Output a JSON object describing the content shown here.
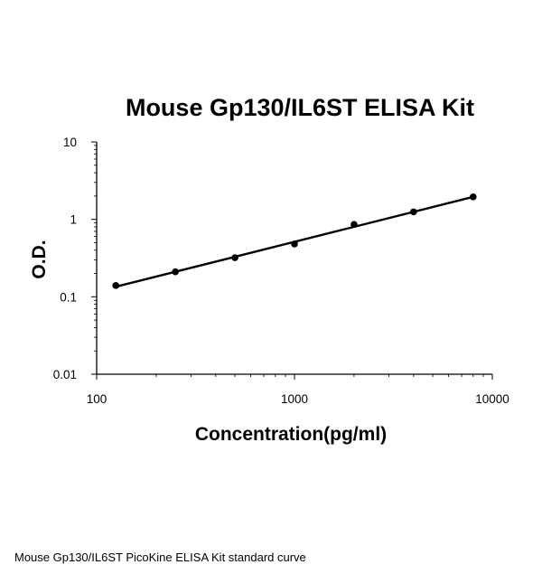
{
  "chart_data": {
    "type": "scatter",
    "title": "Mouse Gp130/IL6ST ELISA Kit",
    "xlabel": "Concentration(pg/ml)",
    "ylabel": "O.D.",
    "x_scale": "log",
    "y_scale": "log",
    "xlim": [
      100,
      10000
    ],
    "ylim": [
      0.01,
      10
    ],
    "x_ticks": [
      100,
      1000,
      10000
    ],
    "x_tick_labels": [
      "100",
      "1000",
      "10000"
    ],
    "y_ticks": [
      0.01,
      0.1,
      1,
      10
    ],
    "y_tick_labels": [
      "0.01",
      "0.1",
      "1",
      "10"
    ],
    "grid": false,
    "legend": "none",
    "series": [
      {
        "x": [
          125,
          250,
          500,
          1000,
          2000,
          4000,
          8000
        ],
        "y": [
          0.14,
          0.21,
          0.32,
          0.48,
          0.86,
          1.25,
          1.95
        ]
      }
    ],
    "fit_line": {
      "x": [
        125,
        8000
      ],
      "y": [
        0.135,
        1.95
      ]
    },
    "colors": {
      "marker": "#000000",
      "line": "#000000",
      "axis": "#000000"
    }
  },
  "caption": "Mouse Gp130/IL6ST PicoKine ELISA Kit standard curve"
}
